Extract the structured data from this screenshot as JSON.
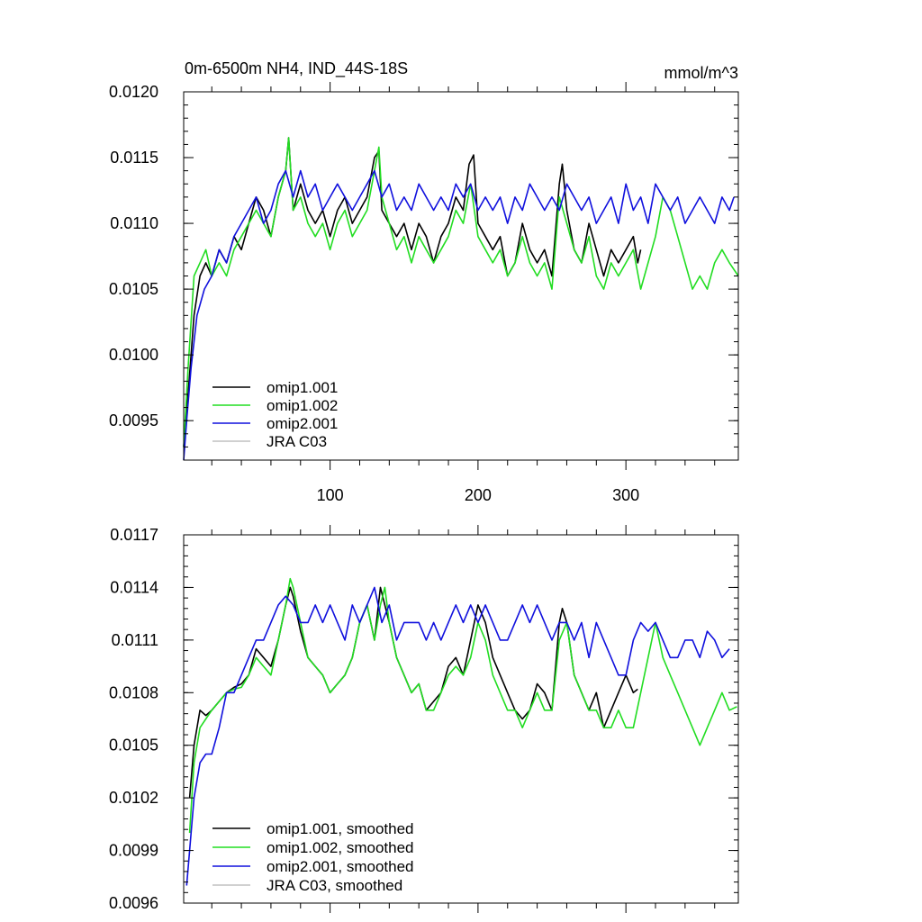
{
  "chart_data": [
    {
      "type": "line",
      "title": "0m-6500m NH4, IND_44S-18S",
      "units": "mmol/m^3",
      "xlim": [
        1,
        376
      ],
      "ylim": [
        0.0092,
        0.012
      ],
      "xticks": [
        100,
        200,
        300
      ],
      "xtick_labels": [
        "100",
        "200",
        "300"
      ],
      "yticks": [
        0.0095,
        0.01,
        0.0105,
        0.011,
        0.0115,
        0.012
      ],
      "ytick_labels": [
        "0.0095",
        "0.0100",
        "0.0105",
        "0.0110",
        "0.0115",
        "0.0120"
      ],
      "legend_position": "bottom-left",
      "series": [
        {
          "name": "omip1.001",
          "color": "#000000",
          "x": [
            1,
            4,
            8,
            12,
            16,
            20,
            25,
            30,
            35,
            40,
            45,
            50,
            55,
            60,
            65,
            70,
            72,
            75,
            80,
            85,
            90,
            95,
            100,
            105,
            110,
            115,
            120,
            125,
            130,
            133,
            135,
            140,
            145,
            150,
            155,
            160,
            165,
            170,
            175,
            180,
            185,
            190,
            194,
            197,
            200,
            205,
            210,
            215,
            220,
            225,
            230,
            235,
            240,
            245,
            250,
            255,
            257,
            260,
            265,
            270,
            275,
            280,
            285,
            290,
            295,
            300,
            305,
            308,
            310
          ],
          "y": [
            0.0093,
            0.0097,
            0.0103,
            0.0106,
            0.0107,
            0.0106,
            0.0108,
            0.0107,
            0.0109,
            0.0108,
            0.011,
            0.0112,
            0.0111,
            0.0109,
            0.0112,
            0.0114,
            0.01165,
            0.0111,
            0.0113,
            0.0111,
            0.011,
            0.0111,
            0.0109,
            0.0111,
            0.0112,
            0.011,
            0.0111,
            0.0112,
            0.0115,
            0.01155,
            0.0111,
            0.011,
            0.0109,
            0.011,
            0.0108,
            0.011,
            0.0109,
            0.0107,
            0.0109,
            0.011,
            0.0112,
            0.0111,
            0.01145,
            0.01152,
            0.011,
            0.0109,
            0.0108,
            0.0109,
            0.0106,
            0.0107,
            0.011,
            0.0108,
            0.0107,
            0.0108,
            0.0106,
            0.0113,
            0.01145,
            0.0111,
            0.0108,
            0.0107,
            0.011,
            0.0108,
            0.0106,
            0.0108,
            0.0107,
            0.0108,
            0.0109,
            0.0107,
            0.0108
          ]
        },
        {
          "name": "omip1.002",
          "color": "#22dd22",
          "x": [
            1,
            4,
            8,
            12,
            16,
            20,
            25,
            30,
            35,
            40,
            45,
            50,
            55,
            60,
            65,
            70,
            72,
            75,
            80,
            85,
            90,
            95,
            100,
            105,
            110,
            115,
            120,
            125,
            130,
            133,
            135,
            140,
            145,
            150,
            155,
            160,
            165,
            170,
            175,
            180,
            185,
            190,
            195,
            200,
            205,
            210,
            215,
            220,
            225,
            230,
            235,
            240,
            245,
            250,
            255,
            260,
            265,
            270,
            275,
            280,
            285,
            290,
            295,
            300,
            305,
            310,
            315,
            320,
            325,
            330,
            335,
            340,
            345,
            350,
            355,
            360,
            365,
            370,
            376
          ],
          "y": [
            0.0093,
            0.0099,
            0.0106,
            0.0107,
            0.0108,
            0.0106,
            0.0107,
            0.0106,
            0.0108,
            0.0109,
            0.011,
            0.0111,
            0.011,
            0.0109,
            0.0112,
            0.0114,
            0.01165,
            0.0111,
            0.0112,
            0.011,
            0.0109,
            0.011,
            0.0108,
            0.011,
            0.0111,
            0.0109,
            0.011,
            0.0111,
            0.0114,
            0.01158,
            0.0112,
            0.011,
            0.0108,
            0.0109,
            0.0107,
            0.0109,
            0.0108,
            0.0107,
            0.0108,
            0.0109,
            0.0111,
            0.011,
            0.0113,
            0.0109,
            0.0108,
            0.0107,
            0.0108,
            0.0106,
            0.0107,
            0.0109,
            0.0107,
            0.0106,
            0.0107,
            0.0105,
            0.0112,
            0.011,
            0.0108,
            0.0107,
            0.0109,
            0.0106,
            0.0105,
            0.0107,
            0.0106,
            0.0107,
            0.0108,
            0.0105,
            0.0107,
            0.0109,
            0.0112,
            0.0111,
            0.0109,
            0.0107,
            0.0105,
            0.0106,
            0.0105,
            0.0107,
            0.0108,
            0.0107,
            0.0106
          ]
        },
        {
          "name": "omip2.001",
          "color": "#1010dd",
          "x": [
            1,
            3,
            6,
            10,
            15,
            20,
            25,
            30,
            35,
            40,
            45,
            50,
            55,
            60,
            65,
            70,
            75,
            80,
            85,
            90,
            95,
            100,
            105,
            110,
            115,
            120,
            125,
            130,
            135,
            140,
            145,
            150,
            155,
            160,
            165,
            170,
            175,
            180,
            185,
            190,
            195,
            200,
            205,
            210,
            215,
            220,
            225,
            230,
            235,
            240,
            245,
            250,
            255,
            260,
            265,
            270,
            275,
            280,
            285,
            290,
            295,
            300,
            305,
            310,
            315,
            320,
            325,
            330,
            335,
            340,
            345,
            350,
            355,
            360,
            365,
            370,
            373
          ],
          "y": [
            0.0092,
            0.0095,
            0.0099,
            0.0103,
            0.0105,
            0.0106,
            0.0108,
            0.0107,
            0.0109,
            0.011,
            0.0111,
            0.0112,
            0.011,
            0.0111,
            0.0113,
            0.0114,
            0.0112,
            0.0114,
            0.0112,
            0.0113,
            0.0111,
            0.0112,
            0.0113,
            0.0112,
            0.0111,
            0.0112,
            0.0113,
            0.0114,
            0.0112,
            0.0113,
            0.0111,
            0.0112,
            0.0111,
            0.0113,
            0.0112,
            0.0111,
            0.0112,
            0.0111,
            0.0113,
            0.0112,
            0.0113,
            0.0111,
            0.0112,
            0.0111,
            0.0112,
            0.011,
            0.0112,
            0.0111,
            0.0113,
            0.0112,
            0.0111,
            0.0112,
            0.0111,
            0.0113,
            0.0112,
            0.0111,
            0.0112,
            0.011,
            0.0111,
            0.0112,
            0.011,
            0.0113,
            0.0111,
            0.0112,
            0.011,
            0.0113,
            0.0112,
            0.0111,
            0.0112,
            0.011,
            0.0111,
            0.0112,
            0.0111,
            0.011,
            0.0112,
            0.0111,
            0.0112
          ]
        },
        {
          "name": "JRA C03",
          "color": "#c0c0c0",
          "x": [],
          "y": []
        }
      ]
    },
    {
      "type": "line",
      "title": "",
      "xlim": [
        1,
        376
      ],
      "ylim": [
        0.0096,
        0.0117
      ],
      "xticks": [
        100,
        200,
        300
      ],
      "xtick_labels": [
        "",
        "",
        ""
      ],
      "yticks": [
        0.0096,
        0.0099,
        0.0102,
        0.0105,
        0.0108,
        0.0111,
        0.0114,
        0.0117
      ],
      "ytick_labels": [
        "0.0096",
        "0.0099",
        "0.0102",
        "0.0105",
        "0.0108",
        "0.0111",
        "0.0114",
        "0.0117"
      ],
      "legend_position": "bottom-left",
      "series": [
        {
          "name": "omip1.001, smoothed",
          "color": "#000000",
          "x": [
            5,
            8,
            12,
            16,
            20,
            25,
            30,
            35,
            40,
            45,
            50,
            55,
            60,
            65,
            70,
            73,
            75,
            80,
            85,
            90,
            95,
            100,
            105,
            110,
            115,
            120,
            125,
            130,
            134,
            137,
            140,
            145,
            150,
            155,
            160,
            165,
            170,
            175,
            180,
            185,
            190,
            195,
            200,
            205,
            210,
            215,
            220,
            225,
            230,
            235,
            240,
            245,
            250,
            255,
            257,
            260,
            265,
            270,
            275,
            280,
            285,
            290,
            295,
            300,
            305,
            308
          ],
          "y": [
            0.0102,
            0.0105,
            0.0107,
            0.01067,
            0.0107,
            0.01075,
            0.0108,
            0.01083,
            0.01085,
            0.0109,
            0.01105,
            0.011,
            0.01095,
            0.0111,
            0.0113,
            0.0114,
            0.01135,
            0.01115,
            0.011,
            0.01095,
            0.0109,
            0.0108,
            0.01085,
            0.0109,
            0.011,
            0.0112,
            0.0113,
            0.0111,
            0.0114,
            0.0113,
            0.0112,
            0.011,
            0.0109,
            0.0108,
            0.01085,
            0.0107,
            0.01075,
            0.0108,
            0.01095,
            0.011,
            0.0109,
            0.0111,
            0.0113,
            0.0112,
            0.011,
            0.0109,
            0.0108,
            0.0107,
            0.01065,
            0.0107,
            0.01085,
            0.0108,
            0.0107,
            0.0112,
            0.01128,
            0.0112,
            0.0109,
            0.0108,
            0.0107,
            0.0108,
            0.0106,
            0.0107,
            0.0108,
            0.0109,
            0.0108,
            0.01082
          ]
        },
        {
          "name": "omip1.002, smoothed",
          "color": "#22dd22",
          "x": [
            5,
            8,
            12,
            16,
            20,
            25,
            30,
            35,
            40,
            45,
            50,
            55,
            60,
            65,
            70,
            73,
            75,
            80,
            85,
            90,
            95,
            100,
            105,
            110,
            115,
            120,
            125,
            130,
            134,
            137,
            140,
            145,
            150,
            155,
            160,
            165,
            170,
            175,
            180,
            185,
            190,
            195,
            200,
            205,
            210,
            215,
            220,
            225,
            230,
            235,
            240,
            245,
            250,
            255,
            260,
            265,
            270,
            275,
            280,
            285,
            290,
            295,
            300,
            305,
            310,
            315,
            320,
            325,
            330,
            335,
            340,
            345,
            350,
            355,
            360,
            365,
            370,
            375
          ],
          "y": [
            0.01,
            0.0104,
            0.0106,
            0.01065,
            0.0107,
            0.01075,
            0.0108,
            0.01082,
            0.01083,
            0.0109,
            0.011,
            0.01095,
            0.0109,
            0.0111,
            0.0113,
            0.01145,
            0.0114,
            0.0112,
            0.011,
            0.01095,
            0.0109,
            0.0108,
            0.01085,
            0.0109,
            0.011,
            0.0112,
            0.0113,
            0.0111,
            0.0113,
            0.0114,
            0.0112,
            0.011,
            0.0109,
            0.0108,
            0.01085,
            0.0107,
            0.0107,
            0.0108,
            0.0109,
            0.01095,
            0.0109,
            0.011,
            0.0112,
            0.0111,
            0.0109,
            0.0108,
            0.0107,
            0.0107,
            0.0106,
            0.0107,
            0.0108,
            0.0107,
            0.0107,
            0.0111,
            0.0112,
            0.0109,
            0.0108,
            0.0107,
            0.0107,
            0.0106,
            0.0106,
            0.0107,
            0.0106,
            0.0106,
            0.0108,
            0.011,
            0.0112,
            0.011,
            0.0109,
            0.0108,
            0.0107,
            0.0106,
            0.0105,
            0.0106,
            0.0107,
            0.0108,
            0.0107,
            0.01072
          ]
        },
        {
          "name": "omip2.001, smoothed",
          "color": "#1010dd",
          "x": [
            3,
            5,
            8,
            12,
            16,
            20,
            25,
            30,
            35,
            40,
            45,
            50,
            55,
            60,
            65,
            70,
            75,
            80,
            85,
            90,
            95,
            100,
            105,
            110,
            115,
            120,
            125,
            130,
            135,
            140,
            145,
            150,
            155,
            160,
            165,
            170,
            175,
            180,
            185,
            190,
            195,
            200,
            205,
            210,
            215,
            220,
            225,
            230,
            235,
            240,
            245,
            250,
            255,
            260,
            265,
            270,
            275,
            280,
            285,
            290,
            295,
            300,
            305,
            310,
            315,
            320,
            325,
            330,
            335,
            340,
            345,
            350,
            355,
            360,
            365,
            370
          ],
          "y": [
            0.0097,
            0.0099,
            0.0102,
            0.0104,
            0.01045,
            0.01045,
            0.0106,
            0.0108,
            0.0108,
            0.0109,
            0.011,
            0.0111,
            0.0111,
            0.0112,
            0.0113,
            0.01135,
            0.0113,
            0.0112,
            0.0112,
            0.0113,
            0.0112,
            0.0113,
            0.0112,
            0.0111,
            0.0113,
            0.0112,
            0.0113,
            0.0114,
            0.0112,
            0.0113,
            0.0111,
            0.0112,
            0.0112,
            0.0112,
            0.0111,
            0.0112,
            0.0111,
            0.0112,
            0.0113,
            0.0112,
            0.0113,
            0.0112,
            0.0113,
            0.0112,
            0.0111,
            0.0111,
            0.0112,
            0.0113,
            0.0112,
            0.0113,
            0.0112,
            0.0111,
            0.0112,
            0.0112,
            0.0111,
            0.0112,
            0.011,
            0.0112,
            0.0111,
            0.011,
            0.0109,
            0.0109,
            0.0111,
            0.0112,
            0.01115,
            0.0112,
            0.0111,
            0.011,
            0.011,
            0.0111,
            0.0111,
            0.011,
            0.01115,
            0.0111,
            0.011,
            0.01105
          ]
        },
        {
          "name": "JRA C03, smoothed",
          "color": "#c0c0c0",
          "x": [],
          "y": []
        }
      ]
    }
  ]
}
